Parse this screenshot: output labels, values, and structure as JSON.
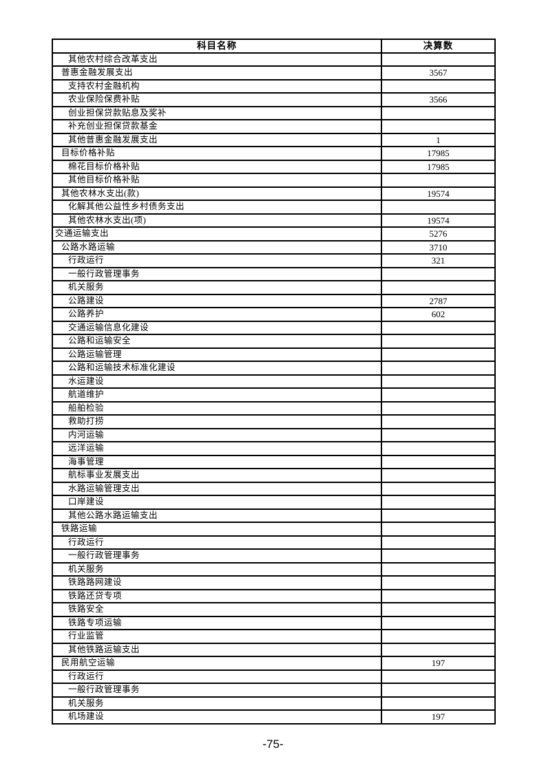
{
  "page": {
    "number_label": "-75-"
  },
  "table": {
    "headers": {
      "subject": "科目名称",
      "amount": "决算数"
    },
    "rows": [
      {
        "label": "其他农村综合改革支出",
        "value": "",
        "indent": 2
      },
      {
        "label": "普惠金融发展支出",
        "value": "3567",
        "indent": 1
      },
      {
        "label": "支持农村金融机构",
        "value": "",
        "indent": 2
      },
      {
        "label": "农业保险保费补贴",
        "value": "3566",
        "indent": 2
      },
      {
        "label": "创业担保贷款贴息及奖补",
        "value": "",
        "indent": 2
      },
      {
        "label": "补充创业担保贷款基金",
        "value": "",
        "indent": 2
      },
      {
        "label": "其他普惠金融发展支出",
        "value": "1",
        "indent": 2
      },
      {
        "label": "目标价格补贴",
        "value": "17985",
        "indent": 1
      },
      {
        "label": "棉花目标价格补贴",
        "value": "17985",
        "indent": 2
      },
      {
        "label": "其他目标价格补贴",
        "value": "",
        "indent": 2
      },
      {
        "label": "其他农林水支出(款)",
        "value": "19574",
        "indent": 1
      },
      {
        "label": "化解其他公益性乡村债务支出",
        "value": "",
        "indent": 2
      },
      {
        "label": "其他农林水支出(项)",
        "value": "19574",
        "indent": 2
      },
      {
        "label": "交通运输支出",
        "value": "5276",
        "indent": 0
      },
      {
        "label": "公路水路运输",
        "value": "3710",
        "indent": 1
      },
      {
        "label": "行政运行",
        "value": "321",
        "indent": 2
      },
      {
        "label": "一般行政管理事务",
        "value": "",
        "indent": 2
      },
      {
        "label": "机关服务",
        "value": "",
        "indent": 2
      },
      {
        "label": "公路建设",
        "value": "2787",
        "indent": 2
      },
      {
        "label": "公路养护",
        "value": "602",
        "indent": 2
      },
      {
        "label": "交通运输信息化建设",
        "value": "",
        "indent": 2
      },
      {
        "label": "公路和运输安全",
        "value": "",
        "indent": 2
      },
      {
        "label": "公路运输管理",
        "value": "",
        "indent": 2
      },
      {
        "label": "公路和运输技术标准化建设",
        "value": "",
        "indent": 2
      },
      {
        "label": "水运建设",
        "value": "",
        "indent": 2
      },
      {
        "label": "航道维护",
        "value": "",
        "indent": 2
      },
      {
        "label": "船舶检验",
        "value": "",
        "indent": 2
      },
      {
        "label": "救助打捞",
        "value": "",
        "indent": 2
      },
      {
        "label": "内河运输",
        "value": "",
        "indent": 2
      },
      {
        "label": "远洋运输",
        "value": "",
        "indent": 2
      },
      {
        "label": "海事管理",
        "value": "",
        "indent": 2
      },
      {
        "label": "航标事业发展支出",
        "value": "",
        "indent": 2
      },
      {
        "label": "水路运输管理支出",
        "value": "",
        "indent": 2
      },
      {
        "label": "口岸建设",
        "value": "",
        "indent": 2
      },
      {
        "label": "其他公路水路运输支出",
        "value": "",
        "indent": 2
      },
      {
        "label": "铁路运输",
        "value": "",
        "indent": 1
      },
      {
        "label": "行政运行",
        "value": "",
        "indent": 2
      },
      {
        "label": "一般行政管理事务",
        "value": "",
        "indent": 2
      },
      {
        "label": "机关服务",
        "value": "",
        "indent": 2
      },
      {
        "label": "铁路路网建设",
        "value": "",
        "indent": 2
      },
      {
        "label": "铁路还贷专项",
        "value": "",
        "indent": 2
      },
      {
        "label": "铁路安全",
        "value": "",
        "indent": 2
      },
      {
        "label": "铁路专项运输",
        "value": "",
        "indent": 2
      },
      {
        "label": "行业监管",
        "value": "",
        "indent": 2
      },
      {
        "label": "其他铁路运输支出",
        "value": "",
        "indent": 2
      },
      {
        "label": "民用航空运输",
        "value": "197",
        "indent": 1
      },
      {
        "label": "行政运行",
        "value": "",
        "indent": 2
      },
      {
        "label": "一般行政管理事务",
        "value": "",
        "indent": 2
      },
      {
        "label": "机关服务",
        "value": "",
        "indent": 2
      },
      {
        "label": "机场建设",
        "value": "197",
        "indent": 2
      }
    ]
  }
}
